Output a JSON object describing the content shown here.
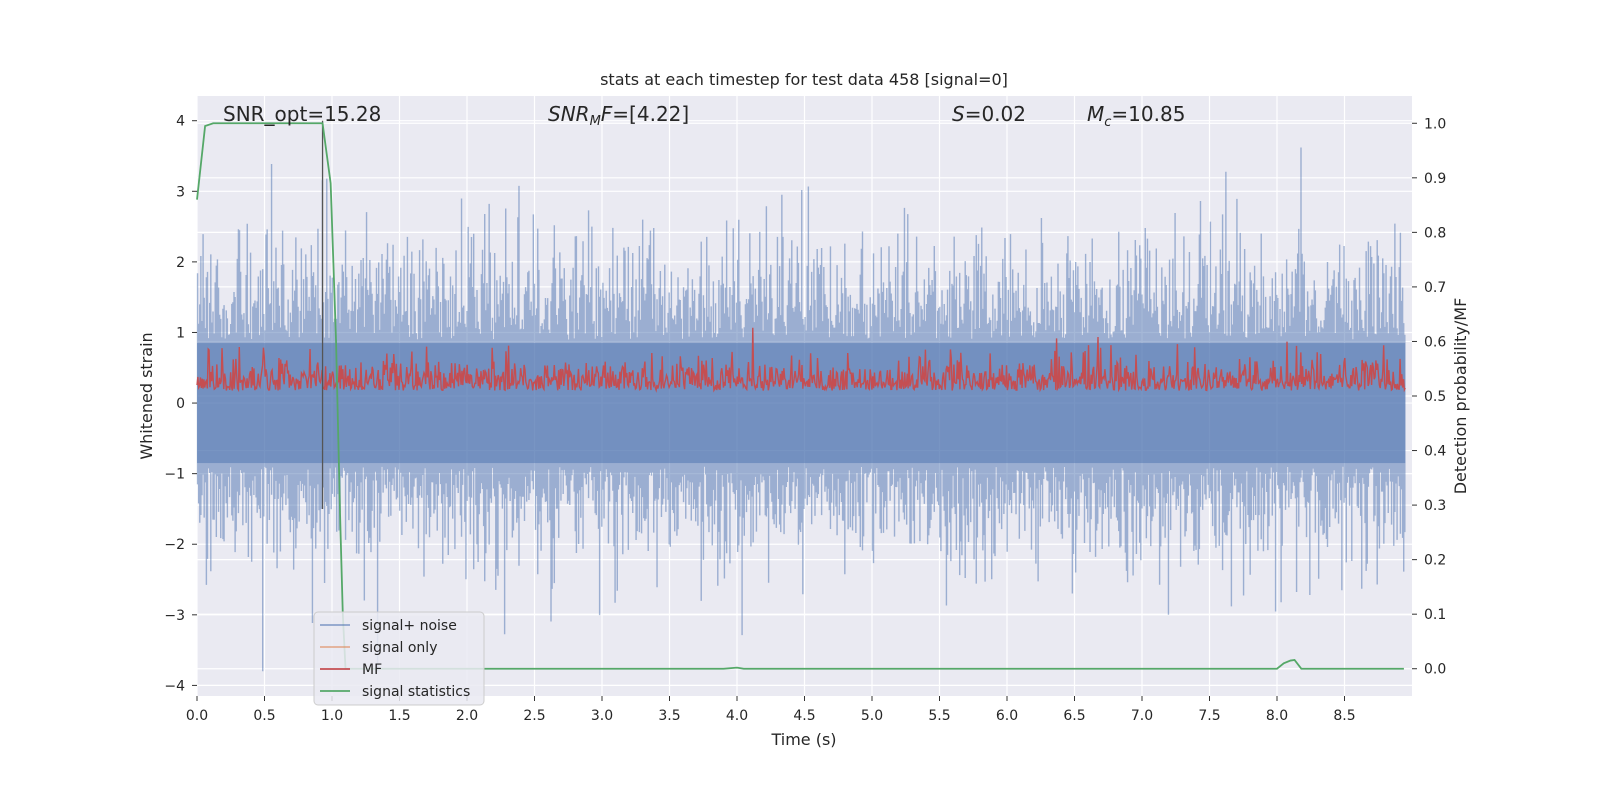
{
  "chart_data": {
    "type": "line",
    "title": "stats at each timestep for test data 458 [signal=0]",
    "xlabel": "Time (s)",
    "ylabel_left": "Whitened strain",
    "ylabel_right": "Detection probability/MF",
    "xlim": [
      0.0,
      9.0
    ],
    "ylim_left": [
      -4.15,
      4.35
    ],
    "ylim_right": [
      -0.05,
      1.05
    ],
    "x_ticks": [
      "0.0",
      "0.5",
      "1.0",
      "1.5",
      "2.0",
      "2.5",
      "3.0",
      "3.5",
      "4.0",
      "4.5",
      "5.0",
      "5.5",
      "6.0",
      "6.5",
      "7.0",
      "7.5",
      "8.0",
      "8.5"
    ],
    "y_ticks_left": [
      "−4",
      "−3",
      "−2",
      "−1",
      "0",
      "1",
      "2",
      "3",
      "4"
    ],
    "y_ticks_right": [
      "0.0",
      "0.1",
      "0.2",
      "0.3",
      "0.4",
      "0.5",
      "0.6",
      "0.7",
      "0.8",
      "0.9",
      "1.0"
    ],
    "grid": true,
    "legend_position": "lower-left",
    "annotations": {
      "snr_opt": "SNR_opt=15.28",
      "snr_mf_value": "=[4.22]",
      "s_value": "=0.02",
      "mc_value": "=10.85"
    },
    "marker_line_x": 0.93,
    "series": [
      {
        "name": "signal+ noise",
        "color": "#4c72b0",
        "axis": "left",
        "description_range": [
          -3.8,
          4.0
        ],
        "approx_envelope": {
          "typical_min": -2.2,
          "typical_max": 2.4
        }
      },
      {
        "name": "signal only",
        "color": "#dd8452",
        "axis": "left",
        "values": []
      },
      {
        "name": "MF",
        "color": "#c44e52",
        "axis": "right",
        "approx_envelope": {
          "min": 0.5,
          "max": 0.62
        }
      },
      {
        "name": "signal statistics",
        "color": "#55a868",
        "axis": "right",
        "x": [
          0.0,
          0.06,
          0.12,
          0.3,
          0.5,
          0.7,
          0.9,
          0.93,
          0.99,
          1.03,
          1.06,
          1.08,
          1.1,
          1.5,
          2.0,
          3.0,
          3.9,
          4.0,
          4.05,
          5.0,
          6.0,
          7.0,
          7.9,
          8.0,
          8.05,
          8.1,
          8.13,
          8.18,
          8.3,
          8.94
        ],
        "values": [
          0.86,
          0.995,
          1.0,
          1.0,
          1.0,
          1.0,
          1.0,
          1.0,
          0.89,
          0.6,
          0.28,
          0.1,
          0.0,
          0.0,
          0.0,
          0.0,
          0.0,
          0.002,
          0.0,
          0.0,
          0.0,
          0.0,
          0.0,
          0.0,
          0.01,
          0.015,
          0.016,
          0.0,
          0.0,
          0.0
        ]
      }
    ]
  }
}
